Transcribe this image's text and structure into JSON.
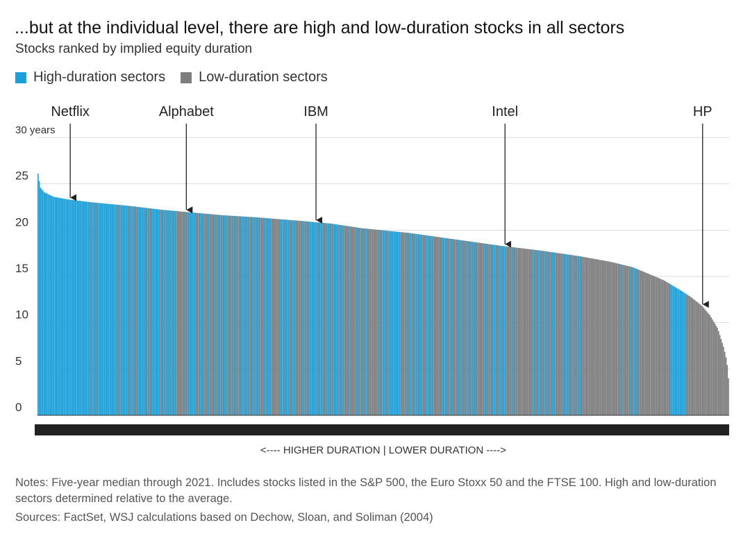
{
  "header": {
    "title": "...but at the individual level, there are high and low-duration stocks in all sectors",
    "subtitle": "Stocks ranked by implied equity duration"
  },
  "legend": {
    "high_label": "High-duration sectors",
    "low_label": "Low-duration sectors"
  },
  "footer": {
    "notes": "Notes: Five-year median through 2021. Includes stocks listed in the S&P 500, the Euro Stoxx 50 and the FTSE 100. High and low-duration sectors determined relative to the average.",
    "sources": "Sources: FactSet, WSJ calculations based on Dechow, Sloan, and Soliman (2004)"
  },
  "colors": {
    "high": "#1a9fd9",
    "low": "#7d7d7d",
    "grid": "#d9d9d9",
    "axis": "#333333"
  },
  "chart_data": {
    "type": "bar",
    "title": "...but at the individual level, there are high and low-duration stocks in all sectors",
    "subtitle": "Stocks ranked by implied equity duration",
    "xlabel": "<---- HIGHER DURATION | LOWER DURATION ---->",
    "ylabel": "",
    "ylim": [
      0,
      30
    ],
    "yticks": [
      {
        "value": 0,
        "label": "0"
      },
      {
        "value": 5,
        "label": "5"
      },
      {
        "value": 10,
        "label": "10"
      },
      {
        "value": 15,
        "label": "15"
      },
      {
        "value": 20,
        "label": "20"
      },
      {
        "value": 25,
        "label": "25"
      },
      {
        "value": 30,
        "label": "30 years"
      }
    ],
    "grid": true,
    "stock_count": 560,
    "series": [
      {
        "name": "High-duration sectors",
        "color": "#1a9fd9"
      },
      {
        "name": "Low-duration sectors",
        "color": "#7d7d7d"
      }
    ],
    "curve_knots": [
      [
        0,
        26.1
      ],
      [
        3,
        24.6
      ],
      [
        8,
        24.1
      ],
      [
        20,
        23.6
      ],
      [
        40,
        23.3
      ],
      [
        70,
        23.0
      ],
      [
        120,
        22.6
      ],
      [
        160,
        22.2
      ],
      [
        200,
        21.9
      ],
      [
        240,
        21.6
      ],
      [
        280,
        21.4
      ],
      [
        340,
        21.0
      ],
      [
        380,
        20.7
      ],
      [
        420,
        20.2
      ],
      [
        480,
        19.7
      ],
      [
        540,
        19.0
      ],
      [
        600,
        18.3
      ],
      [
        650,
        17.8
      ],
      [
        700,
        17.2
      ],
      [
        740,
        16.6
      ],
      [
        770,
        16.0
      ],
      [
        790,
        15.3
      ],
      [
        810,
        14.6
      ],
      [
        830,
        13.6
      ],
      [
        845,
        12.8
      ],
      [
        860,
        11.8
      ],
      [
        870,
        10.8
      ],
      [
        880,
        9.4
      ],
      [
        888,
        7.3
      ],
      [
        892,
        5.8
      ],
      [
        894,
        4.0
      ]
    ],
    "segments": [
      {
        "start": 0,
        "end": 37,
        "sector": "high"
      },
      {
        "start": 37,
        "end": 52,
        "sector": "mix"
      },
      {
        "start": 52,
        "end": 62,
        "sector": "high"
      },
      {
        "start": 62,
        "end": 112,
        "sector": "mix"
      },
      {
        "start": 112,
        "end": 119,
        "sector": "low"
      },
      {
        "start": 119,
        "end": 189,
        "sector": "mix"
      },
      {
        "start": 189,
        "end": 196,
        "sector": "low"
      },
      {
        "start": 196,
        "end": 286,
        "sector": "mix"
      },
      {
        "start": 286,
        "end": 294,
        "sector": "high"
      },
      {
        "start": 294,
        "end": 390,
        "sector": "mix"
      },
      {
        "start": 390,
        "end": 400,
        "sector": "low"
      },
      {
        "start": 400,
        "end": 440,
        "sector": "mix"
      },
      {
        "start": 440,
        "end": 470,
        "sector": "low"
      },
      {
        "start": 470,
        "end": 500,
        "sector": "mix"
      },
      {
        "start": 500,
        "end": 512,
        "sector": "low"
      },
      {
        "start": 512,
        "end": 525,
        "sector": "high"
      },
      {
        "start": 525,
        "end": 560,
        "sector": "low"
      }
    ],
    "annotations": [
      {
        "label": "Netflix",
        "rank": 26
      },
      {
        "label": "Alphabet",
        "rank": 120
      },
      {
        "label": "IBM",
        "rank": 225
      },
      {
        "label": "Intel",
        "rank": 378
      },
      {
        "label": "HP",
        "rank": 538
      }
    ]
  }
}
